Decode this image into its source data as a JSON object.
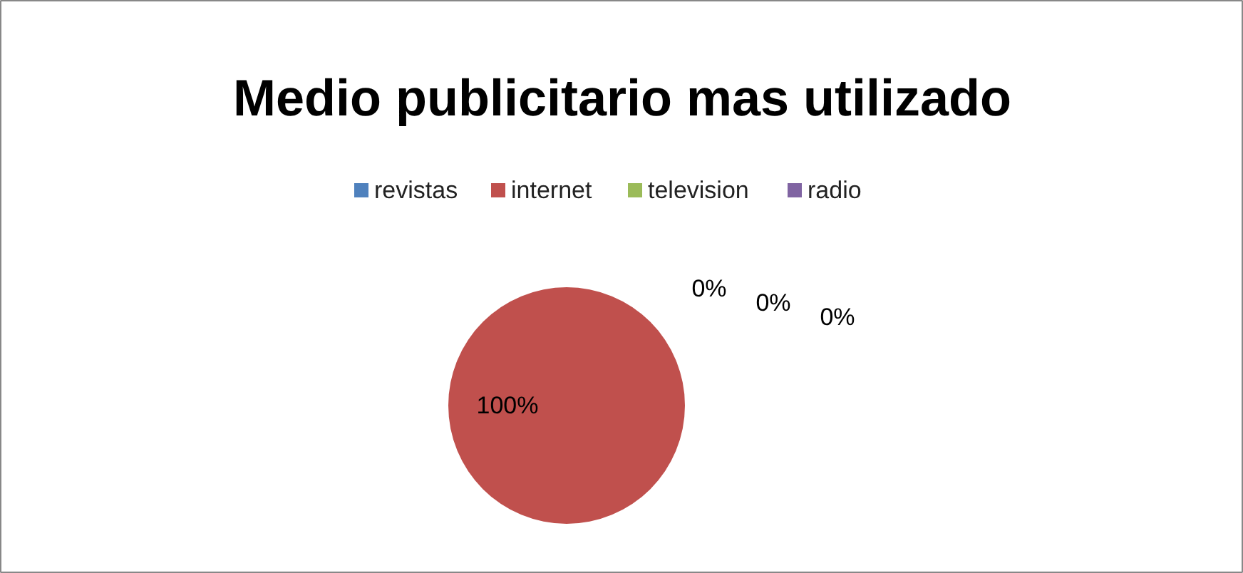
{
  "chart_data": {
    "type": "pie",
    "title": "Medio publicitario mas utilizado",
    "categories": [
      "revistas",
      "internet",
      "television",
      "radio"
    ],
    "values": [
      0,
      100,
      0,
      0
    ],
    "colors": [
      "#4f81bd",
      "#c0504d",
      "#9bbb59",
      "#8064a2"
    ],
    "value_labels": [
      "0%",
      "100%",
      "0%",
      "0%"
    ],
    "legend": "top"
  }
}
